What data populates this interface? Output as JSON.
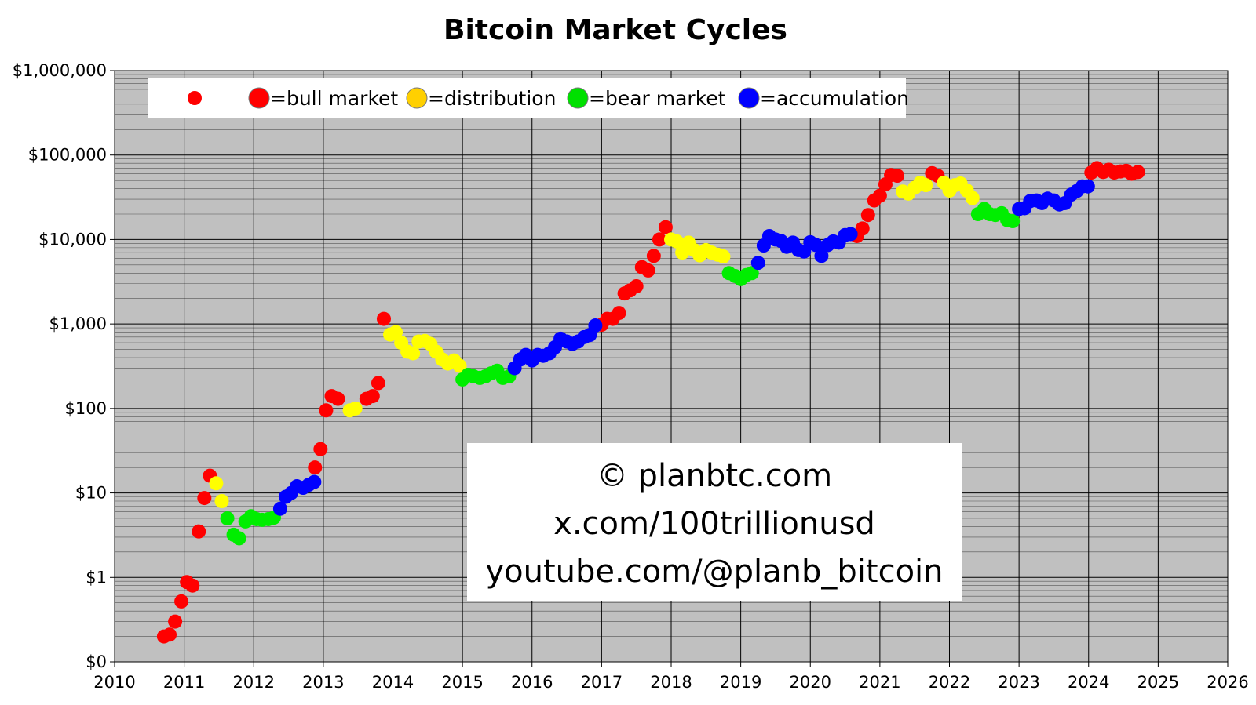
{
  "chart_data": {
    "type": "scatter",
    "title": "Bitcoin Market Cycles",
    "xlabel": "",
    "ylabel": "",
    "y_scale": "log",
    "ylim": [
      0.1,
      1000000
    ],
    "xlim": [
      2010,
      2026
    ],
    "grid": true,
    "x_ticks": [
      "2010",
      "2011",
      "2012",
      "2013",
      "2014",
      "2015",
      "2016",
      "2017",
      "2018",
      "2019",
      "2020",
      "2021",
      "2022",
      "2023",
      "2024",
      "2025",
      "2026"
    ],
    "y_ticks": [
      {
        "value": 0.1,
        "label": "$0"
      },
      {
        "value": 1,
        "label": "$1"
      },
      {
        "value": 10,
        "label": "$10"
      },
      {
        "value": 100,
        "label": "$100"
      },
      {
        "value": 1000,
        "label": "$1,000"
      },
      {
        "value": 10000,
        "label": "$10,000"
      },
      {
        "value": 100000,
        "label": "$100,000"
      },
      {
        "value": 1000000,
        "label": "$1,000,000"
      }
    ],
    "legend_placement": "top-left",
    "legend": [
      {
        "label": "",
        "color": "#ff0000"
      },
      {
        "label": "=bull market",
        "color": "#ff0000"
      },
      {
        "label": "=distribution",
        "color": "#ffd000"
      },
      {
        "label": "=bear market",
        "color": "#00e000"
      },
      {
        "label": "=accumulation",
        "color": "#0000ff"
      }
    ],
    "colors": {
      "bull": "#ff0000",
      "distribution": "#ffff00",
      "bear": "#00ee00",
      "accumulation": "#0000ff",
      "plot_background": "#c0c0c0"
    },
    "series": [
      {
        "color_key": "bull",
        "points": [
          [
            2010.71,
            0.2
          ],
          [
            2010.79,
            0.21
          ],
          [
            2010.87,
            0.3
          ],
          [
            2010.96,
            0.52
          ],
          [
            2011.04,
            0.88
          ],
          [
            2011.12,
            0.8
          ],
          [
            2011.21,
            3.5
          ],
          [
            2011.29,
            8.7
          ],
          [
            2011.37,
            16
          ],
          [
            2012.88,
            20
          ],
          [
            2012.96,
            33
          ],
          [
            2013.04,
            95
          ],
          [
            2013.12,
            140
          ],
          [
            2013.21,
            130
          ],
          [
            2013.62,
            130
          ],
          [
            2013.71,
            140
          ],
          [
            2013.79,
            200
          ],
          [
            2013.87,
            1150
          ],
          [
            2017.0,
            980
          ],
          [
            2017.08,
            1150
          ],
          [
            2017.16,
            1150
          ],
          [
            2017.25,
            1350
          ],
          [
            2017.33,
            2300
          ],
          [
            2017.41,
            2500
          ],
          [
            2017.5,
            2800
          ],
          [
            2017.58,
            4700
          ],
          [
            2017.67,
            4300
          ],
          [
            2017.75,
            6400
          ],
          [
            2017.83,
            10000
          ],
          [
            2017.92,
            14000
          ],
          [
            2020.67,
            11000
          ],
          [
            2020.75,
            13500
          ],
          [
            2020.83,
            19500
          ],
          [
            2020.92,
            29000
          ],
          [
            2021.0,
            33000
          ],
          [
            2021.08,
            45000
          ],
          [
            2021.16,
            58000
          ],
          [
            2021.25,
            57000
          ],
          [
            2021.75,
            61000
          ],
          [
            2021.83,
            57000
          ],
          [
            2024.04,
            62000
          ],
          [
            2024.12,
            70000
          ],
          [
            2024.21,
            63000
          ],
          [
            2024.29,
            67000
          ],
          [
            2024.37,
            62000
          ],
          [
            2024.46,
            64000
          ],
          [
            2024.54,
            65000
          ],
          [
            2024.62,
            60000
          ],
          [
            2024.71,
            63000
          ]
        ]
      },
      {
        "color_key": "distribution",
        "points": [
          [
            2011.46,
            13
          ],
          [
            2011.54,
            8
          ],
          [
            2013.38,
            95
          ],
          [
            2013.46,
            100
          ],
          [
            2013.96,
            750
          ],
          [
            2014.04,
            800
          ],
          [
            2014.12,
            600
          ],
          [
            2014.21,
            470
          ],
          [
            2014.29,
            450
          ],
          [
            2014.37,
            620
          ],
          [
            2014.46,
            630
          ],
          [
            2014.54,
            580
          ],
          [
            2014.62,
            470
          ],
          [
            2014.71,
            380
          ],
          [
            2014.79,
            340
          ],
          [
            2014.88,
            370
          ],
          [
            2014.96,
            320
          ],
          [
            2018.0,
            10000
          ],
          [
            2018.08,
            9500
          ],
          [
            2018.16,
            7000
          ],
          [
            2018.25,
            9200
          ],
          [
            2018.33,
            7500
          ],
          [
            2018.41,
            6500
          ],
          [
            2018.5,
            7500
          ],
          [
            2018.58,
            7000
          ],
          [
            2018.67,
            6600
          ],
          [
            2018.75,
            6300
          ],
          [
            2021.33,
            37000
          ],
          [
            2021.41,
            35000
          ],
          [
            2021.5,
            41000
          ],
          [
            2021.58,
            47000
          ],
          [
            2021.66,
            44000
          ],
          [
            2021.92,
            47000
          ],
          [
            2022.0,
            38000
          ],
          [
            2022.08,
            44000
          ],
          [
            2022.16,
            46000
          ],
          [
            2022.25,
            38000
          ],
          [
            2022.33,
            31000
          ]
        ]
      },
      {
        "color_key": "bear",
        "points": [
          [
            2011.62,
            5
          ],
          [
            2011.71,
            3.2
          ],
          [
            2011.79,
            2.9
          ],
          [
            2011.88,
            4.6
          ],
          [
            2011.96,
            5.3
          ],
          [
            2012.04,
            4.9
          ],
          [
            2012.12,
            4.8
          ],
          [
            2012.21,
            4.9
          ],
          [
            2012.29,
            5.1
          ],
          [
            2015.0,
            220
          ],
          [
            2015.08,
            250
          ],
          [
            2015.16,
            240
          ],
          [
            2015.25,
            230
          ],
          [
            2015.33,
            240
          ],
          [
            2015.41,
            260
          ],
          [
            2015.5,
            280
          ],
          [
            2015.58,
            230
          ],
          [
            2015.67,
            240
          ],
          [
            2018.83,
            4000
          ],
          [
            2018.92,
            3700
          ],
          [
            2019.0,
            3400
          ],
          [
            2019.08,
            3800
          ],
          [
            2019.16,
            4000
          ],
          [
            2022.41,
            20000
          ],
          [
            2022.5,
            23000
          ],
          [
            2022.58,
            20000
          ],
          [
            2022.66,
            19500
          ],
          [
            2022.75,
            20500
          ],
          [
            2022.83,
            17000
          ],
          [
            2022.91,
            16500
          ]
        ]
      },
      {
        "color_key": "accumulation",
        "points": [
          [
            2012.38,
            6.5
          ],
          [
            2012.46,
            9
          ],
          [
            2012.54,
            10
          ],
          [
            2012.62,
            12
          ],
          [
            2012.71,
            11.5
          ],
          [
            2012.79,
            12.5
          ],
          [
            2012.87,
            13.5
          ],
          [
            2015.75,
            300
          ],
          [
            2015.83,
            380
          ],
          [
            2015.91,
            430
          ],
          [
            2016.0,
            370
          ],
          [
            2016.08,
            430
          ],
          [
            2016.16,
            420
          ],
          [
            2016.25,
            450
          ],
          [
            2016.33,
            530
          ],
          [
            2016.41,
            670
          ],
          [
            2016.5,
            620
          ],
          [
            2016.58,
            580
          ],
          [
            2016.66,
            620
          ],
          [
            2016.75,
            700
          ],
          [
            2016.83,
            740
          ],
          [
            2016.91,
            960
          ],
          [
            2019.25,
            5300
          ],
          [
            2019.33,
            8500
          ],
          [
            2019.41,
            11000
          ],
          [
            2019.5,
            10000
          ],
          [
            2019.58,
            9600
          ],
          [
            2019.66,
            8200
          ],
          [
            2019.75,
            9200
          ],
          [
            2019.83,
            7500
          ],
          [
            2019.91,
            7200
          ],
          [
            2020.0,
            9300
          ],
          [
            2020.08,
            8600
          ],
          [
            2020.16,
            6400
          ],
          [
            2020.25,
            8600
          ],
          [
            2020.33,
            9500
          ],
          [
            2020.41,
            9200
          ],
          [
            2020.5,
            11300
          ],
          [
            2020.58,
            11600
          ],
          [
            2023.0,
            23000
          ],
          [
            2023.08,
            23500
          ],
          [
            2023.16,
            28500
          ],
          [
            2023.25,
            29000
          ],
          [
            2023.33,
            27000
          ],
          [
            2023.41,
            30500
          ],
          [
            2023.5,
            29000
          ],
          [
            2023.58,
            26000
          ],
          [
            2023.66,
            27000
          ],
          [
            2023.75,
            34000
          ],
          [
            2023.83,
            37500
          ],
          [
            2023.91,
            42500
          ],
          [
            2023.99,
            42500
          ]
        ]
      }
    ]
  },
  "credit_box": {
    "line1": "© planbtc.com",
    "line2": "x.com/100trillionusd",
    "line3": "youtube.com/@planb_bitcoin"
  }
}
